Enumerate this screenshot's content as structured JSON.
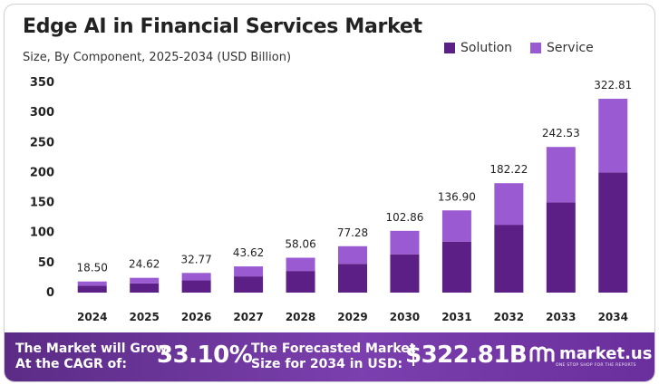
{
  "header": {
    "title": "Edge AI in Financial Services Market",
    "subtitle": "Size, By Component, 2025-2034 (USD Billion)"
  },
  "legend": [
    {
      "label": "Solution",
      "color": "#5c1f86"
    },
    {
      "label": "Service",
      "color": "#9a5ad2"
    }
  ],
  "chart_data": {
    "type": "bar",
    "stacked": true,
    "categories": [
      "2024",
      "2025",
      "2026",
      "2027",
      "2028",
      "2029",
      "2030",
      "2031",
      "2032",
      "2033",
      "2034"
    ],
    "series": [
      {
        "name": "Solution",
        "color": "#5c1f86",
        "values": [
          11.5,
          15.3,
          20.3,
          27.0,
          36.0,
          47.9,
          63.8,
          84.9,
          113.0,
          150.4,
          200.1
        ]
      },
      {
        "name": "Service",
        "color": "#9a5ad2",
        "values": [
          7.0,
          9.32,
          12.47,
          16.62,
          22.06,
          29.38,
          39.06,
          52.0,
          69.22,
          92.13,
          122.71
        ]
      }
    ],
    "totals": [
      18.5,
      24.62,
      32.77,
      43.62,
      58.06,
      77.28,
      102.86,
      136.9,
      182.22,
      242.53,
      322.81
    ],
    "total_labels": [
      "18.50",
      "24.62",
      "32.77",
      "43.62",
      "58.06",
      "77.28",
      "102.86",
      "136.90",
      "182.22",
      "242.53",
      "322.81"
    ],
    "yticks": [
      0,
      50,
      100,
      150,
      200,
      250,
      300,
      350
    ],
    "ylim": [
      0,
      350
    ],
    "grid": false,
    "legend_position": "top-right"
  },
  "footer": {
    "cagr_label": "The Market will Grow\nAt the CAGR of:",
    "cagr_value": "33.10%",
    "forecast_label": "The Forecasted Market\nSize for 2034 in USD:",
    "forecast_value": "$322.81B",
    "brand": "market.us",
    "brand_tagline": "ONE STOP SHOP FOR THE REPORTS"
  }
}
